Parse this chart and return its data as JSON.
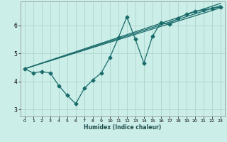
{
  "xlabel": "Humidex (Indice chaleur)",
  "bg_color": "#cceee8",
  "line_color": "#1a6b6b",
  "grid_color": "#b0d8d0",
  "xlim": [
    -0.5,
    23.5
  ],
  "ylim": [
    2.75,
    6.85
  ],
  "yticks": [
    3,
    4,
    5,
    6
  ],
  "xticks": [
    0,
    1,
    2,
    3,
    4,
    5,
    6,
    7,
    8,
    9,
    10,
    11,
    12,
    13,
    14,
    15,
    16,
    17,
    18,
    19,
    20,
    21,
    22,
    23
  ],
  "line1_x": [
    0,
    1,
    2,
    3,
    4,
    5,
    6,
    7,
    8,
    9,
    10,
    11,
    12,
    13,
    14,
    15,
    16,
    17,
    18,
    19,
    20,
    21,
    22,
    23
  ],
  "line1_y": [
    4.45,
    4.3,
    4.35,
    4.3,
    3.85,
    3.5,
    3.2,
    3.75,
    4.05,
    4.3,
    4.85,
    5.55,
    6.3,
    5.5,
    4.65,
    5.6,
    6.1,
    6.05,
    6.25,
    6.4,
    6.5,
    6.55,
    6.6,
    6.65
  ],
  "line3_x": [
    0,
    23
  ],
  "line3_y": [
    4.45,
    6.62
  ],
  "line4_x": [
    0,
    23
  ],
  "line4_y": [
    4.45,
    6.7
  ],
  "line5_x": [
    0,
    23
  ],
  "line5_y": [
    4.45,
    6.78
  ],
  "marker_size": 2.5,
  "line_width": 0.9
}
